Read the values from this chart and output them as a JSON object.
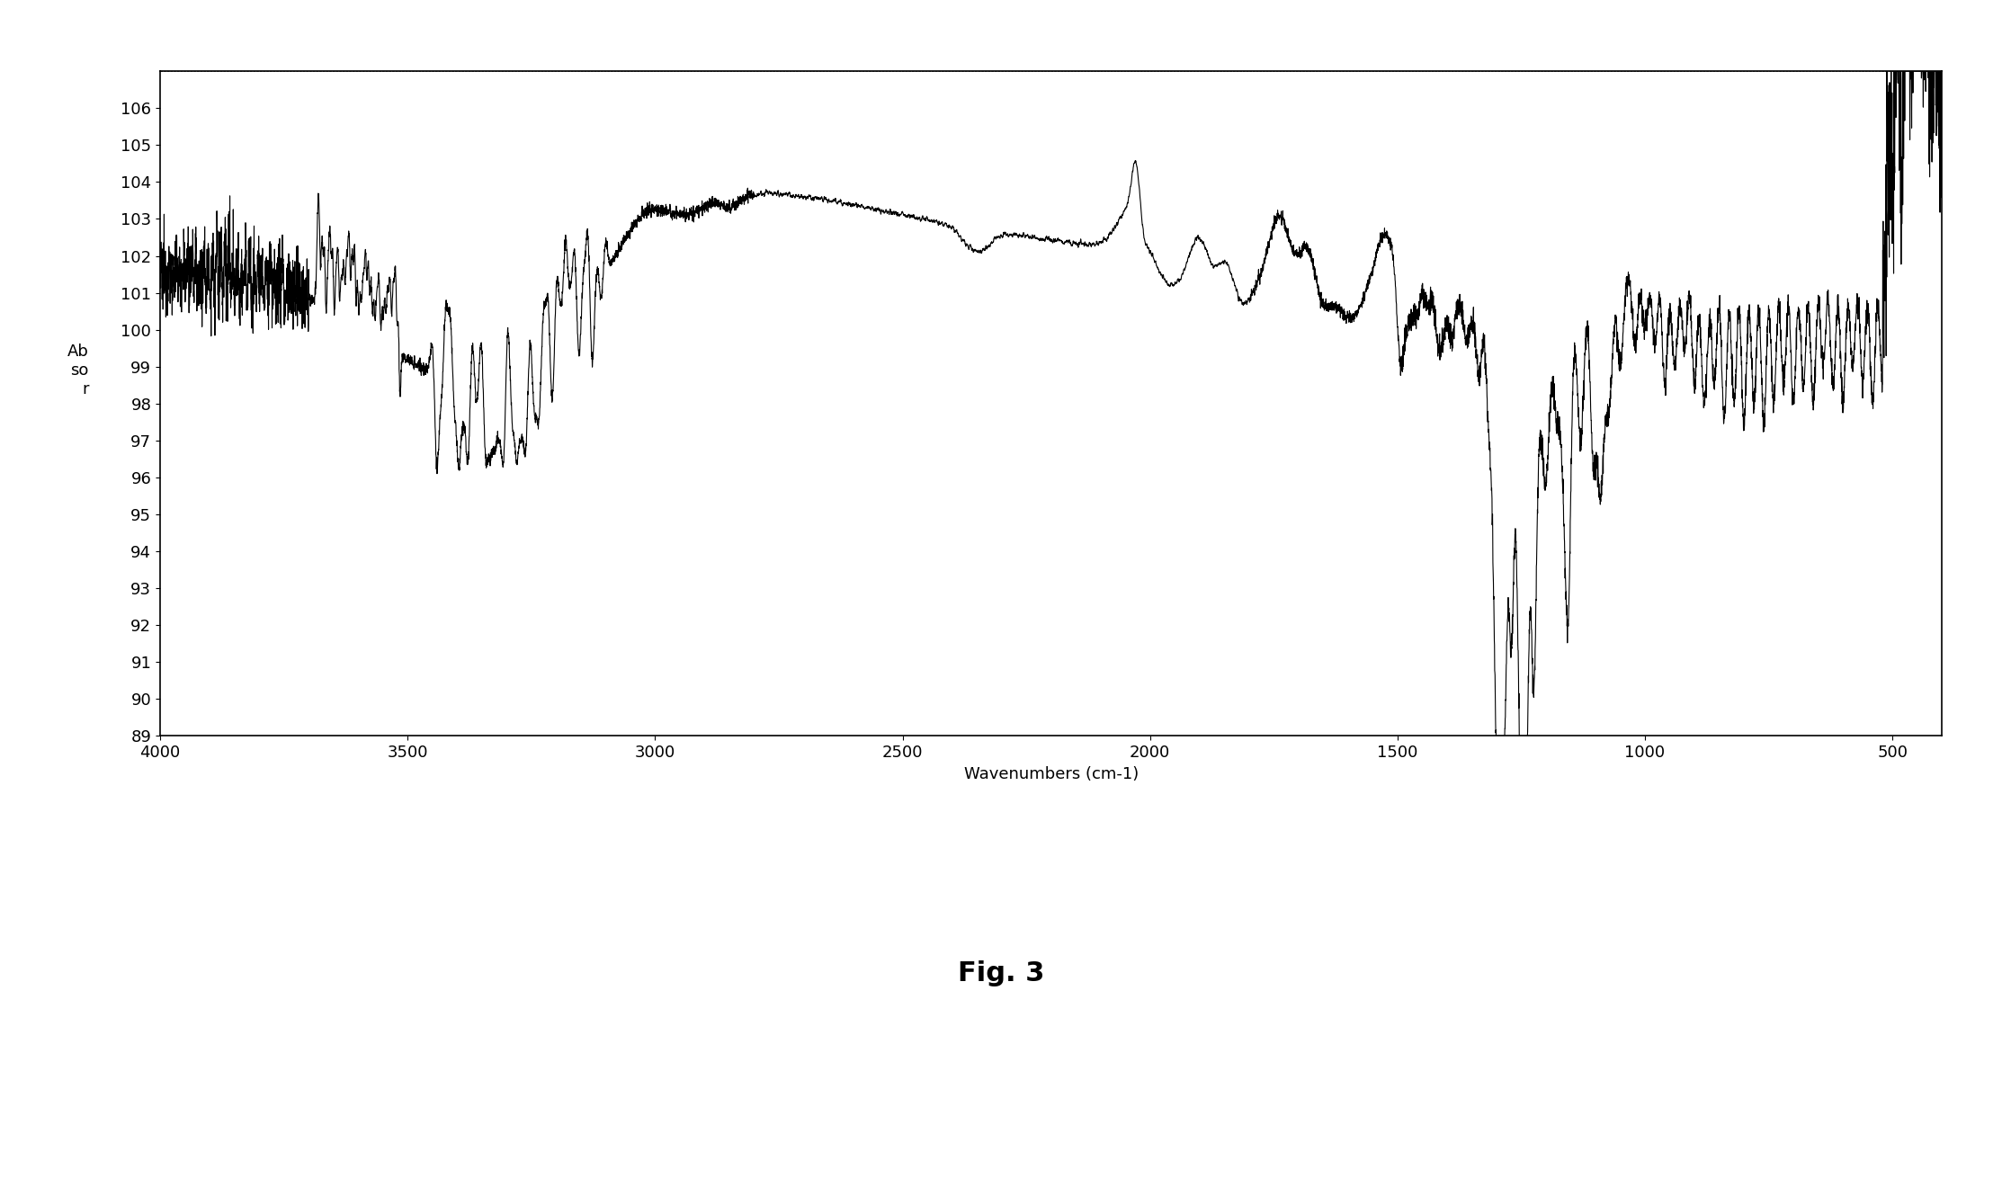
{
  "title": "Fig. 3",
  "xlabel": "Wavenumbers (cm-1)",
  "ylabel_lines": [
    "Ab",
    "so",
    "r"
  ],
  "xlim": [
    4000,
    400
  ],
  "ylim": [
    89,
    107
  ],
  "yticks": [
    89,
    90,
    91,
    92,
    93,
    94,
    95,
    96,
    97,
    98,
    99,
    100,
    101,
    102,
    103,
    104,
    105,
    106
  ],
  "xticks": [
    4000,
    3500,
    3000,
    2500,
    2000,
    1500,
    1000,
    500
  ],
  "line_color": "#000000",
  "background_color": "#ffffff",
  "fig_background": "#ffffff"
}
